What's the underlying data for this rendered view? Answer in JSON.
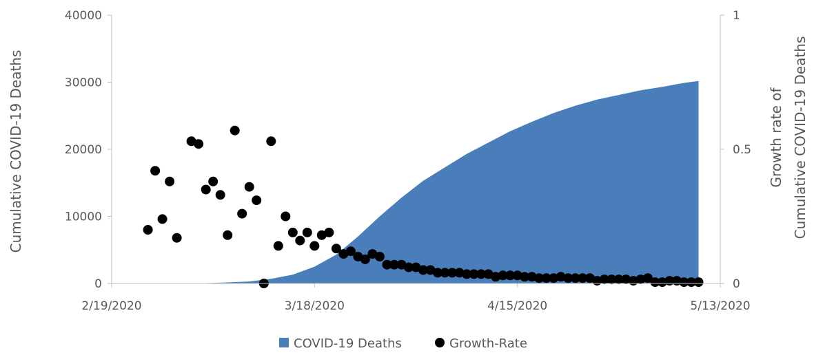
{
  "chart_data": {
    "type": "area",
    "x_axis": {
      "type": "date",
      "range": [
        "2020-02-19",
        "2020-05-13"
      ],
      "tick_labels": [
        "2/19/2020",
        "3/18/2020",
        "4/15/2020",
        "5/13/2020"
      ]
    },
    "y_left": {
      "label": "Cumulative COVID-19 Deaths",
      "range": [
        0,
        40000
      ],
      "tick_labels": [
        "0",
        "10000",
        "20000",
        "30000",
        "40000"
      ]
    },
    "y_right": {
      "label_lines": [
        "Growth rate of",
        "Cumulative COVID-19 Deaths"
      ],
      "range": [
        0,
        1
      ],
      "tick_labels": [
        "0",
        "0.5",
        "1"
      ]
    },
    "grid": false,
    "legend": {
      "position": "bottom"
    },
    "colors": {
      "area": "#4a7ebb",
      "points": "#000000",
      "axis": "#bfbfbf",
      "text": "#595959"
    },
    "series": [
      {
        "name": "COVID-19 Deaths",
        "kind": "area",
        "axis": "left",
        "x": [
          "2020-02-29",
          "2020-03-03",
          "2020-03-06",
          "2020-03-09",
          "2020-03-12",
          "2020-03-15",
          "2020-03-18",
          "2020-03-21",
          "2020-03-24",
          "2020-03-27",
          "2020-03-30",
          "2020-04-02",
          "2020-04-05",
          "2020-04-08",
          "2020-04-11",
          "2020-04-14",
          "2020-04-17",
          "2020-04-20",
          "2020-04-23",
          "2020-04-26",
          "2020-04-29",
          "2020-05-02",
          "2020-05-05",
          "2020-05-08",
          "2020-05-10"
        ],
        "values": [
          0,
          50,
          150,
          300,
          700,
          1300,
          2500,
          4300,
          7000,
          10000,
          12800,
          15300,
          17300,
          19300,
          21000,
          22700,
          24100,
          25400,
          26500,
          27400,
          28100,
          28800,
          29300,
          29900,
          30200
        ]
      },
      {
        "name": "Growth-Rate",
        "kind": "scatter",
        "axis": "right",
        "x": [
          "2020-02-24",
          "2020-02-25",
          "2020-02-26",
          "2020-02-27",
          "2020-02-28",
          "2020-03-01",
          "2020-03-02",
          "2020-03-03",
          "2020-03-04",
          "2020-03-05",
          "2020-03-06",
          "2020-03-07",
          "2020-03-08",
          "2020-03-09",
          "2020-03-10",
          "2020-03-11",
          "2020-03-12",
          "2020-03-13",
          "2020-03-14",
          "2020-03-15",
          "2020-03-16",
          "2020-03-17",
          "2020-03-18",
          "2020-03-19",
          "2020-03-20",
          "2020-03-21",
          "2020-03-22",
          "2020-03-23",
          "2020-03-24",
          "2020-03-25",
          "2020-03-26",
          "2020-03-27",
          "2020-03-28",
          "2020-03-29",
          "2020-03-30",
          "2020-03-31",
          "2020-04-01",
          "2020-04-02",
          "2020-04-03",
          "2020-04-04",
          "2020-04-05",
          "2020-04-06",
          "2020-04-07",
          "2020-04-08",
          "2020-04-09",
          "2020-04-10",
          "2020-04-11",
          "2020-04-12",
          "2020-04-13",
          "2020-04-14",
          "2020-04-15",
          "2020-04-16",
          "2020-04-17",
          "2020-04-18",
          "2020-04-19",
          "2020-04-20",
          "2020-04-21",
          "2020-04-22",
          "2020-04-23",
          "2020-04-24",
          "2020-04-25",
          "2020-04-26",
          "2020-04-27",
          "2020-04-28",
          "2020-04-29",
          "2020-04-30",
          "2020-05-01",
          "2020-05-02",
          "2020-05-03",
          "2020-05-04",
          "2020-05-05",
          "2020-05-06",
          "2020-05-07",
          "2020-05-08",
          "2020-05-09",
          "2020-05-10"
        ],
        "values": [
          0.2,
          0.42,
          0.24,
          0.38,
          0.17,
          0.53,
          0.52,
          0.35,
          0.38,
          0.33,
          0.18,
          0.57,
          0.26,
          0.36,
          0.31,
          0.0,
          0.53,
          0.14,
          0.25,
          0.19,
          0.16,
          0.19,
          0.14,
          0.18,
          0.19,
          0.13,
          0.11,
          0.12,
          0.1,
          0.09,
          0.11,
          0.1,
          0.07,
          0.07,
          0.07,
          0.06,
          0.06,
          0.05,
          0.05,
          0.04,
          0.04,
          0.04,
          0.04,
          0.035,
          0.035,
          0.035,
          0.035,
          0.025,
          0.03,
          0.03,
          0.03,
          0.025,
          0.025,
          0.02,
          0.02,
          0.02,
          0.025,
          0.02,
          0.02,
          0.02,
          0.02,
          0.01,
          0.015,
          0.015,
          0.015,
          0.015,
          0.01,
          0.015,
          0.02,
          0.005,
          0.005,
          0.01,
          0.01,
          0.005,
          0.005,
          0.005
        ]
      }
    ]
  }
}
